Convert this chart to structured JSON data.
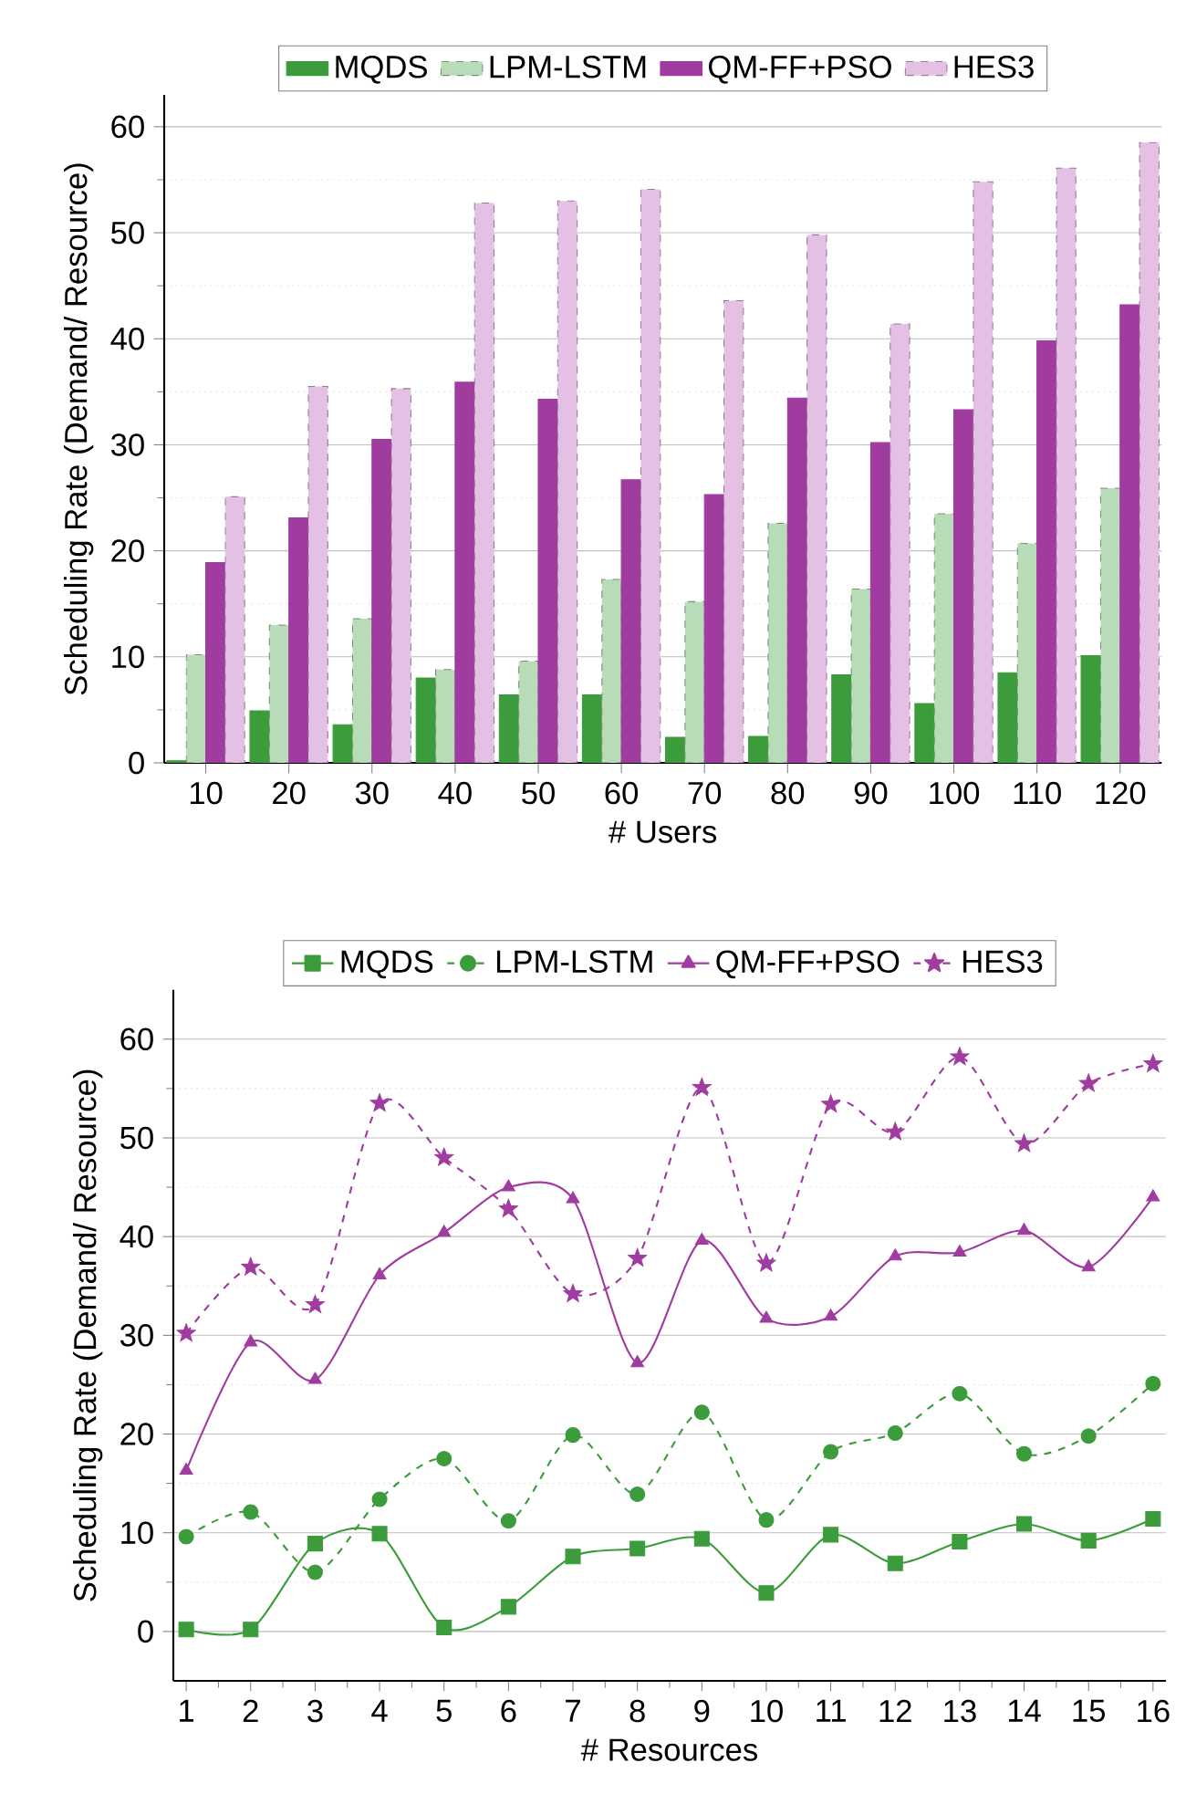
{
  "chart_data": [
    {
      "type": "bar",
      "xlabel": "# Users",
      "ylabel": "Scheduling Rate (Demand/ Resource)",
      "categories": [
        "10",
        "20",
        "30",
        "40",
        "50",
        "60",
        "70",
        "80",
        "90",
        "100",
        "110",
        "120"
      ],
      "series": [
        {
          "name": "MQDS",
          "color": "#3c9c3c",
          "line_style": "solid",
          "values": [
            0.2,
            4.9,
            3.6,
            8.0,
            6.4,
            6.4,
            2.4,
            2.5,
            8.3,
            5.6,
            8.5,
            10.1
          ]
        },
        {
          "name": "LPM-LSTM",
          "color": "#b8dcb8",
          "line_style": "dashed",
          "values": [
            10.2,
            13.0,
            13.6,
            8.8,
            9.6,
            17.3,
            15.2,
            22.6,
            16.4,
            23.5,
            20.7,
            25.9
          ]
        },
        {
          "name": "QM-FF+PSO",
          "color": "#a03ca0",
          "line_style": "solid",
          "values": [
            18.9,
            23.1,
            30.5,
            35.9,
            34.3,
            26.7,
            25.3,
            34.4,
            30.2,
            33.3,
            39.8,
            43.2
          ]
        },
        {
          "name": "HES3",
          "color": "#e4c0e4",
          "line_style": "dashed",
          "values": [
            25.1,
            35.5,
            35.3,
            52.8,
            53.0,
            54.1,
            43.6,
            49.8,
            41.4,
            54.8,
            56.1,
            58.5
          ]
        }
      ],
      "ylim": [
        0,
        63
      ],
      "yticks": [
        0,
        10,
        20,
        30,
        40,
        50,
        60
      ],
      "grid": "y",
      "legend": "top"
    },
    {
      "type": "line",
      "xlabel": "# Resources",
      "ylabel": "Scheduling Rate (Demand/ Resource)",
      "x": [
        1,
        2,
        3,
        4,
        5,
        6,
        7,
        8,
        9,
        10,
        11,
        12,
        13,
        14,
        15,
        16
      ],
      "series": [
        {
          "name": "MQDS",
          "color": "#3c9c3c",
          "line_style": "solid",
          "marker": "square",
          "values": [
            0.2,
            0.2,
            8.9,
            9.9,
            0.4,
            2.5,
            7.6,
            8.4,
            9.4,
            3.9,
            9.8,
            6.9,
            9.1,
            10.9,
            9.2,
            11.4
          ]
        },
        {
          "name": "LPM-LSTM",
          "color": "#3c9c3c",
          "line_style": "dashed",
          "marker": "circle",
          "values": [
            9.6,
            12.1,
            6.0,
            13.4,
            17.5,
            11.2,
            19.9,
            13.9,
            22.2,
            11.3,
            18.2,
            20.1,
            24.1,
            18.0,
            19.8,
            25.1
          ]
        },
        {
          "name": "QM-FF+PSO",
          "color": "#a03ca0",
          "line_style": "solid",
          "marker": "triangle",
          "values": [
            16.3,
            29.3,
            25.5,
            36.1,
            40.4,
            45.0,
            43.8,
            27.2,
            39.6,
            31.7,
            31.9,
            38.0,
            38.4,
            40.6,
            36.9,
            44.0
          ]
        },
        {
          "name": "HES3",
          "color": "#a03ca0",
          "line_style": "dashed",
          "marker": "star",
          "values": [
            30.2,
            36.9,
            33.1,
            53.5,
            48.0,
            42.8,
            34.2,
            37.8,
            55.1,
            37.3,
            53.4,
            50.6,
            58.2,
            49.4,
            55.5,
            57.5
          ]
        }
      ],
      "xlim": [
        0.8,
        16.2
      ],
      "xticks": [
        1,
        2,
        3,
        4,
        5,
        6,
        7,
        8,
        9,
        10,
        11,
        12,
        13,
        14,
        15,
        16
      ],
      "ylim": [
        -5,
        65
      ],
      "yticks": [
        0,
        10,
        20,
        30,
        40,
        50,
        60
      ],
      "grid": "y",
      "legend": "top"
    }
  ]
}
